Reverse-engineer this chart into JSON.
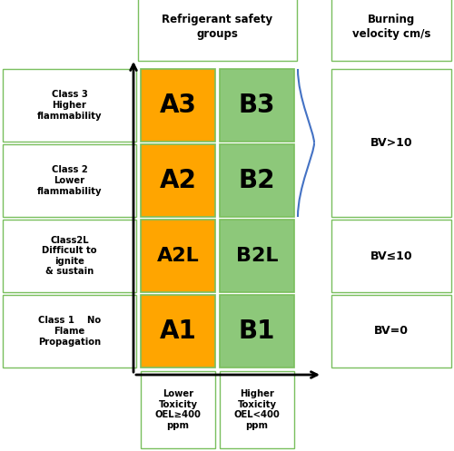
{
  "title": "Refrigerant safety\ngroups",
  "burning_title": "Burning\nvelocity cm/s",
  "orange_color": "#FFA500",
  "green_color": "#8DC87A",
  "box_edge_color": "#7ABF5E",
  "cells": [
    {
      "label": "A3",
      "col": 0,
      "row": 3,
      "color": "#FFA500"
    },
    {
      "label": "B3",
      "col": 1,
      "row": 3,
      "color": "#8DC87A"
    },
    {
      "label": "A2",
      "col": 0,
      "row": 2,
      "color": "#FFA500"
    },
    {
      "label": "B2",
      "col": 1,
      "row": 2,
      "color": "#8DC87A"
    },
    {
      "label": "A2L",
      "col": 0,
      "row": 1,
      "color": "#FFA500"
    },
    {
      "label": "B2L",
      "col": 1,
      "row": 1,
      "color": "#8DC87A"
    },
    {
      "label": "A1",
      "col": 0,
      "row": 0,
      "color": "#FFA500"
    },
    {
      "label": "B1",
      "col": 1,
      "row": 0,
      "color": "#8DC87A"
    }
  ],
  "left_labels": [
    {
      "row": 3,
      "text": "Class 3\nHigher\nflammability"
    },
    {
      "row": 2,
      "text": "Class 2\nLower\nflammability"
    },
    {
      "row": 1,
      "text": "Class2L\nDifficult to\nignite\n& sustain"
    },
    {
      "row": 0,
      "text": "Class 1    No\nFlame\nPropagation"
    }
  ],
  "bottom_labels": [
    {
      "col": 0,
      "text": "Lower\nToxicity\nOEL≥400\nppm"
    },
    {
      "col": 1,
      "text": "Higher\nToxicity\nOEL<400\nppm"
    }
  ],
  "bv_labels": [
    {
      "rows": [
        2,
        3
      ],
      "text": "BV>10"
    },
    {
      "rows": [
        1
      ],
      "text": "BV≤10"
    },
    {
      "rows": [
        0
      ],
      "text": "BV=0"
    }
  ],
  "brace_color": "#4472C4",
  "arrow_color": "#000000",
  "edge_color_left": "#7ABF5E",
  "edge_color_bv": "#7ABF5E"
}
